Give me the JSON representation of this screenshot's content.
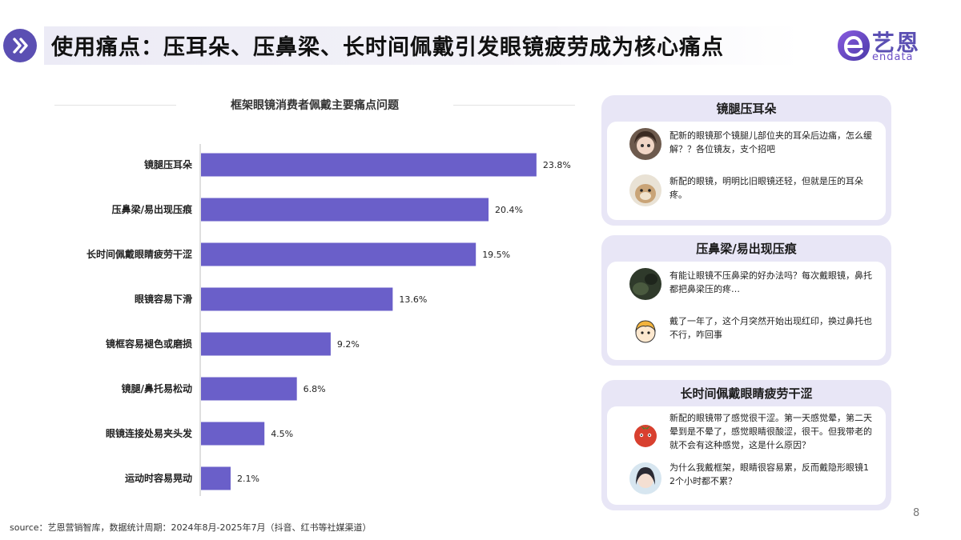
{
  "header": {
    "title": "使用痛点：压耳朵、压鼻梁、长时间佩戴引发眼镜疲劳成为核心痛点",
    "icon": "double-chevron-right-icon"
  },
  "brand": {
    "name": "艺恩",
    "sub": "endata",
    "color": "#5b4fb3"
  },
  "chart_data": {
    "type": "bar",
    "orientation": "horizontal",
    "title": "框架眼镜消费者佩戴主要痛点问题",
    "categories": [
      "镜腿压耳朵",
      "压鼻梁/易出现压痕",
      "长时间佩戴眼睛疲劳干涩",
      "眼镜容易下滑",
      "镜框容易褪色或磨损",
      "镜腿/鼻托易松动",
      "眼镜连接处易夹头发",
      "运动时容易晃动"
    ],
    "values": [
      23.8,
      20.4,
      19.5,
      13.6,
      9.2,
      6.8,
      4.5,
      2.1
    ],
    "value_labels": [
      "23.8%",
      "20.4%",
      "19.5%",
      "13.6%",
      "9.2%",
      "6.8%",
      "4.5%",
      "2.1%"
    ],
    "xlim": [
      0,
      25
    ],
    "grid": false,
    "bar_color": "#6a5fc9"
  },
  "panels": [
    {
      "title": "镜腿压耳朵",
      "comments": [
        {
          "avatar": "girl-avatar-icon",
          "text": "配新的眼镜那个镜腿儿部位夹的耳朵后边痛，怎么缓解？？各位镜友，支个招吧"
        },
        {
          "avatar": "otter-avatar-icon",
          "text": "新配的眼镜，明明比旧眼镜还轻，但就是压的耳朵疼。"
        }
      ]
    },
    {
      "title": "压鼻梁/易出现压痕",
      "comments": [
        {
          "avatar": "dark-photo-avatar-icon",
          "text": "有能让眼镜不压鼻梁的好办法吗？每次戴眼镜，鼻托都把鼻梁压的疼…"
        },
        {
          "avatar": "cartoon-boy-avatar-icon",
          "text": "戴了一年了，这个月突然开始出现红印，换过鼻托也不行，咋回事"
        }
      ]
    },
    {
      "title": "长时间佩戴眼睛疲劳干涩",
      "comments": [
        {
          "avatar": "tomato-avatar-icon",
          "text": "新配的眼镜带了感觉很干涩。第一天感觉晕，第二天晕到是不晕了，感觉眼睛很酸涩，很干。但我带老的就不会有这种感觉，这是什么原因？"
        },
        {
          "avatar": "woman-avatar-icon",
          "text": "为什么我戴框架，眼睛很容易累，反而戴隐形眼镜1 2个小时都不累？"
        }
      ]
    }
  ],
  "footer": {
    "source": "source：艺恩营销智库，数据统计周期：2024年8月-2025年7月（抖音、红书等社媒渠道）",
    "page_number": "8"
  }
}
